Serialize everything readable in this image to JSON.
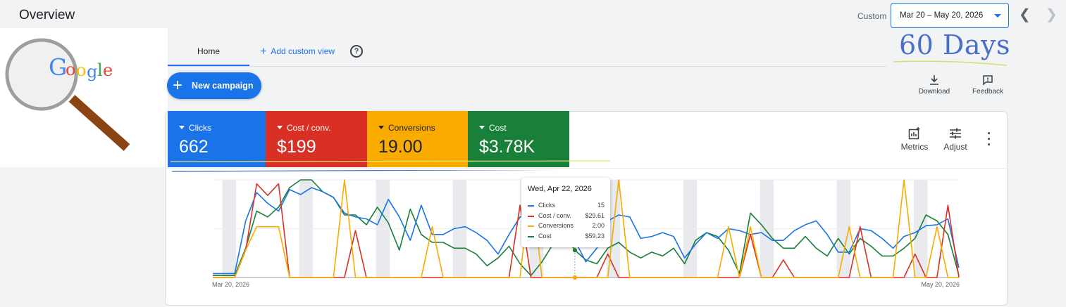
{
  "header": {
    "title": "Overview",
    "custom_label": "Custom",
    "date_range": "Mar 20 – May 20, 2026",
    "annotation": "60 Days"
  },
  "logo": {
    "text": "Google"
  },
  "tabs": [
    {
      "label": "Home"
    },
    {
      "label": "Add custom view"
    }
  ],
  "actions": {
    "new_campaign": "New campaign",
    "download": "Download",
    "feedback": "Feedback",
    "metrics": "Metrics",
    "adjust": "Adjust"
  },
  "metrics": [
    {
      "label": "Clicks",
      "value": "662",
      "color": "#1a73e8"
    },
    {
      "label": "Cost / conv.",
      "value": "$199",
      "color": "#d93025"
    },
    {
      "label": "Conversions",
      "value": "19.00",
      "color": "#f9ab00"
    },
    {
      "label": "Cost",
      "value": "$3.78K",
      "color": "#188038"
    }
  ],
  "tooltip": {
    "date": "Wed, Apr 22, 2026",
    "rows": [
      {
        "label": "Clicks",
        "value": "15",
        "color": "#1a73e8"
      },
      {
        "label": "Cost / conv.",
        "value": "$29.61",
        "color": "#d93025"
      },
      {
        "label": "Conversions",
        "value": "2.00",
        "color": "#f9ab00"
      },
      {
        "label": "Cost",
        "value": "$59.23",
        "color": "#188038"
      }
    ]
  },
  "chart_data": {
    "type": "line",
    "x_start_label": "Mar 20, 2026",
    "x_end_label": "May 20, 2026",
    "weekend_bands": true,
    "series": [
      {
        "name": "Clicks",
        "color": "#1a73e8",
        "values": [
          0.04,
          0.04,
          0.04,
          0.58,
          0.87,
          0.76,
          0.68,
          0.9,
          0.85,
          0.92,
          0.88,
          0.82,
          0.66,
          0.62,
          0.6,
          0.54,
          0.8,
          0.62,
          0.38,
          0.74,
          0.44,
          0.44,
          0.5,
          0.52,
          0.46,
          0.38,
          0.24,
          0.44,
          0.62,
          0.64,
          0.52,
          0.5,
          0.46,
          0.38,
          0.16,
          0.3,
          0.58,
          0.64,
          0.62,
          0.4,
          0.42,
          0.46,
          0.42,
          0.2,
          0.34,
          0.46,
          0.4,
          0.5,
          0.48,
          0.44,
          0.46,
          0.38,
          0.38,
          0.48,
          0.54,
          0.58,
          0.44,
          0.26,
          0.26,
          0.5,
          0.48,
          0.4,
          0.3,
          0.42,
          0.46,
          0.53,
          0.54,
          0.6,
          0.1
        ]
      },
      {
        "name": "Cost / conv.",
        "color": "#d93025",
        "values": [
          0.0,
          0.0,
          0.0,
          0.28,
          0.96,
          0.84,
          0.96,
          0.0,
          0.0,
          0.0,
          0.0,
          0.0,
          0.0,
          0.48,
          0.0,
          0.0,
          0.0,
          0.0,
          0.0,
          0.0,
          0.0,
          0.0,
          0.0,
          0.0,
          0.0,
          0.0,
          0.0,
          0.0,
          0.74,
          0.0,
          0.0,
          0.0,
          0.0,
          0.0,
          0.0,
          0.0,
          0.24,
          0.0,
          0.0,
          0.0,
          0.0,
          0.0,
          0.0,
          0.0,
          0.0,
          0.0,
          0.0,
          0.0,
          0.0,
          0.44,
          0.0,
          0.0,
          0.18,
          0.0,
          0.0,
          0.0,
          0.0,
          0.0,
          0.0,
          0.52,
          0.0,
          0.0,
          0.0,
          0.0,
          0.24,
          0.0,
          0.0,
          0.74,
          0.0
        ]
      },
      {
        "name": "Conversions",
        "color": "#f9ab00",
        "values": [
          0.0,
          0.0,
          0.0,
          0.28,
          0.52,
          0.52,
          0.52,
          0.0,
          0.0,
          0.0,
          0.0,
          0.0,
          1.0,
          0.0,
          0.0,
          0.0,
          0.0,
          0.0,
          0.0,
          0.0,
          0.52,
          0.0,
          0.0,
          0.0,
          0.0,
          0.0,
          0.0,
          0.0,
          0.0,
          1.0,
          0.0,
          0.0,
          0.0,
          0.0,
          0.0,
          0.0,
          0.0,
          1.0,
          0.0,
          0.0,
          0.0,
          0.0,
          0.0,
          0.0,
          0.0,
          0.0,
          0.0,
          0.52,
          0.0,
          0.52,
          0.0,
          0.0,
          0.0,
          0.0,
          0.0,
          0.0,
          0.0,
          0.0,
          0.52,
          0.0,
          0.0,
          0.0,
          0.0,
          1.0,
          0.0,
          0.0,
          0.52,
          0.0,
          0.0
        ]
      },
      {
        "name": "Cost",
        "color": "#188038",
        "values": [
          0.02,
          0.02,
          0.02,
          0.3,
          0.68,
          0.62,
          0.72,
          0.92,
          1.0,
          1.0,
          0.88,
          0.82,
          0.64,
          0.64,
          0.54,
          0.72,
          0.56,
          0.28,
          0.7,
          0.44,
          0.36,
          0.36,
          0.3,
          0.3,
          0.24,
          0.12,
          0.2,
          0.32,
          0.14,
          0.02,
          0.16,
          0.34,
          0.44,
          0.28,
          0.18,
          0.14,
          0.3,
          0.36,
          0.26,
          0.2,
          0.26,
          0.22,
          0.3,
          0.14,
          0.38,
          0.46,
          0.42,
          0.28,
          0.04,
          0.66,
          0.54,
          0.4,
          0.3,
          0.3,
          0.42,
          0.3,
          0.22,
          0.4,
          0.24,
          0.4,
          0.32,
          0.22,
          0.22,
          0.3,
          0.4,
          0.64,
          0.58,
          0.44,
          0.02
        ]
      }
    ],
    "highlight_index": 33,
    "ylim": [
      0,
      1
    ]
  }
}
